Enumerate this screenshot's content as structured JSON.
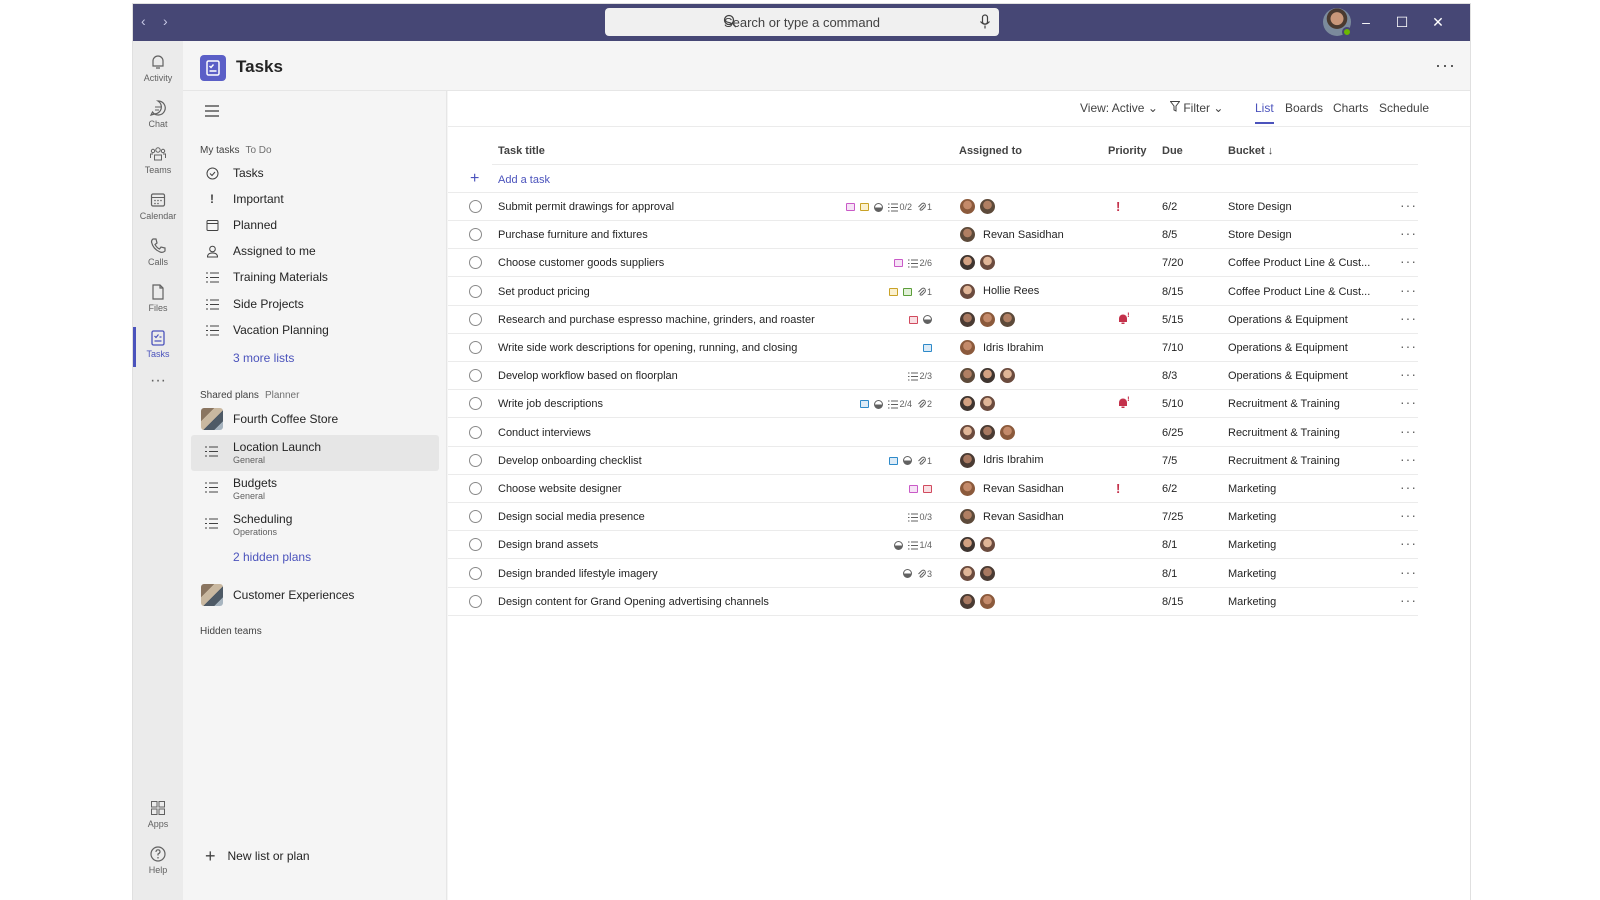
{
  "window": {
    "search_placeholder": "Search or type a command"
  },
  "rail": [
    {
      "label": "Activity",
      "icon": "bell-icon"
    },
    {
      "label": "Chat",
      "icon": "chat-icon"
    },
    {
      "label": "Teams",
      "icon": "teams-icon"
    },
    {
      "label": "Calendar",
      "icon": "calendar-icon"
    },
    {
      "label": "Calls",
      "icon": "phone-icon"
    },
    {
      "label": "Files",
      "icon": "file-icon"
    },
    {
      "label": "Tasks",
      "icon": "tasks-icon"
    },
    {
      "label": "Apps",
      "icon": "apps-icon"
    },
    {
      "label": "Help",
      "icon": "help-icon"
    }
  ],
  "app": {
    "title": "Tasks"
  },
  "sidebar": {
    "my_tasks": {
      "heading": "My tasks",
      "sub": "To Do"
    },
    "my_items": [
      "Tasks",
      "Important",
      "Planned",
      "Assigned to me",
      "Training Materials",
      "Side Projects",
      "Vacation Planning"
    ],
    "more_lists": "3 more lists",
    "shared": {
      "heading": "Shared plans",
      "sub": "Planner"
    },
    "team1": "Fourth Coffee Store",
    "plans": [
      {
        "title": "Location Launch",
        "sub": "General"
      },
      {
        "title": "Budgets",
        "sub": "General"
      },
      {
        "title": "Scheduling",
        "sub": "Operations"
      }
    ],
    "hidden_plans": "2 hidden plans",
    "team2": "Customer Experiences",
    "hidden_teams": "Hidden teams",
    "new_list": "New list or plan"
  },
  "toolbar": {
    "view": "View: Active",
    "filter": "Filter",
    "tabs": [
      "List",
      "Boards",
      "Charts",
      "Schedule"
    ],
    "active_tab": "List"
  },
  "columns": {
    "title": "Task title",
    "assigned": "Assigned to",
    "priority": "Priority",
    "due": "Due",
    "bucket": "Bucket ↓"
  },
  "add_task": "Add a task",
  "tasks": [
    {
      "title": "Submit permit drawings for approval",
      "checklist": "0/2",
      "attach": "1",
      "due": "6/2",
      "bucket": "Store Design",
      "assignee_name": "",
      "priority": "!"
    },
    {
      "title": "Purchase furniture and fixtures",
      "checklist": "",
      "attach": "",
      "due": "8/5",
      "bucket": "Store Design",
      "assignee_name": "Revan Sasidhan",
      "priority": ""
    },
    {
      "title": "Choose customer goods suppliers",
      "checklist": "2/6",
      "attach": "",
      "due": "7/20",
      "bucket": "Coffee Product Line & Cust...",
      "assignee_name": "",
      "priority": ""
    },
    {
      "title": "Set product pricing",
      "checklist": "",
      "attach": "1",
      "due": "8/15",
      "bucket": "Coffee Product Line & Cust...",
      "assignee_name": "Hollie Rees",
      "priority": ""
    },
    {
      "title": "Research and purchase espresso machine, grinders, and roaster",
      "checklist": "",
      "attach": "",
      "due": "5/15",
      "bucket": "Operations & Equipment",
      "assignee_name": "",
      "priority": "urgent"
    },
    {
      "title": "Write side work descriptions for opening, running, and closing",
      "checklist": "",
      "attach": "",
      "due": "7/10",
      "bucket": "Operations & Equipment",
      "assignee_name": "Idris Ibrahim",
      "priority": ""
    },
    {
      "title": "Develop workflow based on floorplan",
      "checklist": "2/3",
      "attach": "",
      "due": "8/3",
      "bucket": "Operations & Equipment",
      "assignee_name": "",
      "priority": ""
    },
    {
      "title": "Write job descriptions",
      "checklist": "2/4",
      "attach": "2",
      "due": "5/10",
      "bucket": "Recruitment & Training",
      "assignee_name": "",
      "priority": "urgent"
    },
    {
      "title": "Conduct interviews",
      "checklist": "",
      "attach": "",
      "due": "6/25",
      "bucket": "Recruitment & Training",
      "assignee_name": "",
      "priority": ""
    },
    {
      "title": "Develop onboarding checklist",
      "checklist": "",
      "attach": "1",
      "due": "7/5",
      "bucket": "Recruitment & Training",
      "assignee_name": "Idris Ibrahim",
      "priority": ""
    },
    {
      "title": "Choose website designer",
      "checklist": "",
      "attach": "",
      "due": "6/2",
      "bucket": "Marketing",
      "assignee_name": "Revan Sasidhan",
      "priority": "!"
    },
    {
      "title": "Design social media presence",
      "checklist": "0/3",
      "attach": "",
      "due": "7/25",
      "bucket": "Marketing",
      "assignee_name": "Revan Sasidhan",
      "priority": ""
    },
    {
      "title": "Design brand assets",
      "checklist": "1/4",
      "attach": "",
      "due": "8/1",
      "bucket": "Marketing",
      "assignee_name": "",
      "priority": ""
    },
    {
      "title": "Design branded lifestyle imagery",
      "checklist": "",
      "attach": "3",
      "due": "8/1",
      "bucket": "Marketing",
      "assignee_name": "",
      "priority": ""
    },
    {
      "title": "Design content for Grand Opening advertising channels",
      "checklist": "",
      "attach": "",
      "due": "8/15",
      "bucket": "Marketing",
      "assignee_name": "",
      "priority": ""
    }
  ],
  "colors": {
    "titlebar": "#464775",
    "accent": "#4b53bc",
    "priority_red": "#c4314b"
  }
}
